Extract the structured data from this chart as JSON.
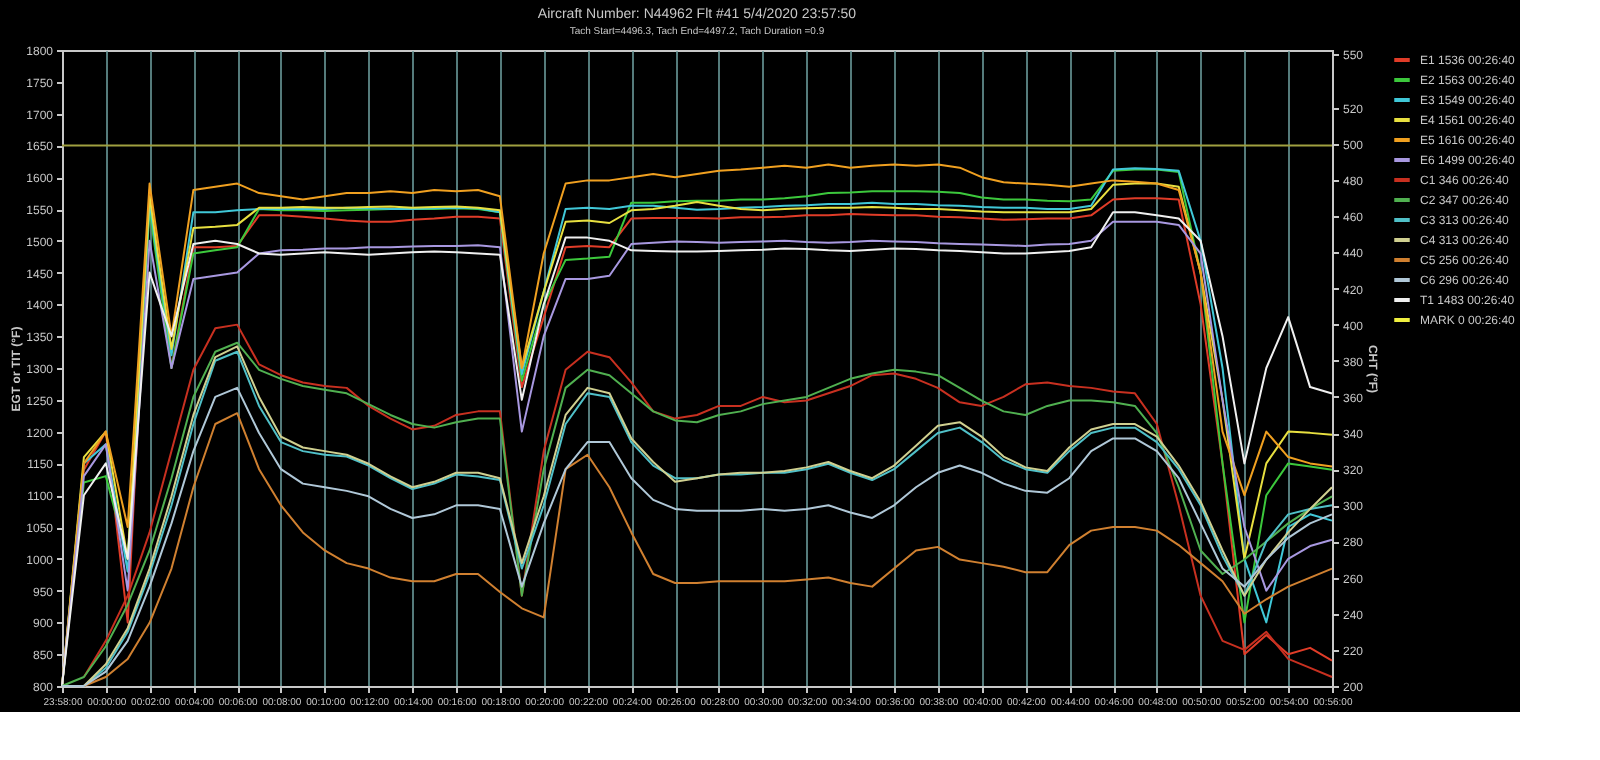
{
  "chart_data": {
    "type": "line",
    "title": "Aircraft Number: N44962 Flt #41 5/4/2020 23:57:50",
    "subtitle": "Tach Start=4496.3, Tach End=4497.2, Tach Duration =0.9",
    "ylabel": "EGT or TIT (°F)",
    "y2label": "CHT (°F)",
    "x": [
      "2020-05-04T23:58",
      "2020-05-04T23:59",
      "2020-05-05T00:00",
      "2020-05-05T00:01",
      "2020-05-05T00:02",
      "2020-05-05T00:03",
      "2020-05-05T00:04",
      "2020-05-05T00:05",
      "2020-05-05T00:06",
      "2020-05-05T00:07",
      "2020-05-05T00:08",
      "2020-05-05T00:09",
      "2020-05-05T00:10",
      "2020-05-05T00:11",
      "2020-05-05T00:12",
      "2020-05-05T00:13",
      "2020-05-05T00:14",
      "2020-05-05T00:15",
      "2020-05-05T00:16",
      "2020-05-05T00:17",
      "2020-05-05T00:18",
      "2020-05-05T00:19",
      "2020-05-05T00:20",
      "2020-05-05T00:21",
      "2020-05-05T00:22",
      "2020-05-05T00:23",
      "2020-05-05T00:24",
      "2020-05-05T00:25",
      "2020-05-05T00:26",
      "2020-05-05T00:27",
      "2020-05-05T00:28",
      "2020-05-05T00:29",
      "2020-05-05T00:30",
      "2020-05-05T00:31",
      "2020-05-05T00:32",
      "2020-05-05T00:33",
      "2020-05-05T00:34",
      "2020-05-05T00:35",
      "2020-05-05T00:36",
      "2020-05-05T00:37",
      "2020-05-05T00:38",
      "2020-05-05T00:39",
      "2020-05-05T00:40",
      "2020-05-05T00:41",
      "2020-05-05T00:42",
      "2020-05-05T00:43",
      "2020-05-05T00:44",
      "2020-05-05T00:45",
      "2020-05-05T00:46",
      "2020-05-05T00:47",
      "2020-05-05T00:48",
      "2020-05-05T00:49",
      "2020-05-05T00:50",
      "2020-05-05T00:51",
      "2020-05-05T00:52",
      "2020-05-05T00:53",
      "2020-05-05T00:54",
      "2020-05-05T00:55",
      "2020-05-05T00:56"
    ],
    "series": [
      {
        "name": "E1 1536 00:26:40",
        "color": "#e03c28",
        "values": [
          800,
          1140,
          1200,
          900,
          1580,
          1300,
          1490,
          1490,
          1492,
          1540,
          1540,
          1538,
          1535,
          1532,
          1530,
          1530,
          1533,
          1535,
          1538,
          1538,
          1535,
          1270,
          1380,
          1490,
          1492,
          1490,
          1535,
          1536,
          1536,
          1536,
          1535,
          1537,
          1537,
          1538,
          1540,
          1540,
          1542,
          1541,
          1540,
          1540,
          1538,
          1537,
          1535,
          1533,
          1534,
          1535,
          1535,
          1540,
          1565,
          1567,
          1567,
          1565,
          1400,
          1150,
          850,
          880,
          850,
          860,
          840
        ]
      },
      {
        "name": "E2 1563 00:26:40",
        "color": "#3cc83c",
        "values": [
          800,
          1120,
          1130,
          1000,
          1550,
          1300,
          1480,
          1485,
          1490,
          1550,
          1548,
          1548,
          1547,
          1548,
          1549,
          1550,
          1550,
          1550,
          1551,
          1550,
          1545,
          1280,
          1400,
          1470,
          1472,
          1475,
          1560,
          1560,
          1562,
          1563,
          1563,
          1565,
          1565,
          1567,
          1570,
          1575,
          1576,
          1578,
          1578,
          1578,
          1577,
          1575,
          1568,
          1565,
          1565,
          1563,
          1562,
          1565,
          1610,
          1612,
          1612,
          1608,
          1450,
          1150,
          900,
          1100,
          1150,
          1145,
          1140
        ]
      },
      {
        "name": "E3 1549 00:26:40",
        "color": "#40c8d8",
        "values": [
          800,
          1150,
          1180,
          980,
          1560,
          1320,
          1545,
          1545,
          1548,
          1550,
          1550,
          1550,
          1550,
          1552,
          1551,
          1550,
          1550,
          1551,
          1552,
          1551,
          1545,
          1290,
          1420,
          1550,
          1552,
          1550,
          1555,
          1555,
          1552,
          1549,
          1550,
          1552,
          1553,
          1555,
          1556,
          1558,
          1558,
          1560,
          1558,
          1558,
          1556,
          1555,
          1553,
          1552,
          1552,
          1550,
          1550,
          1555,
          1612,
          1614,
          1613,
          1610,
          1500,
          1300,
          1000,
          900,
          1050,
          1070,
          1060
        ]
      },
      {
        "name": "E4 1561 00:26:40",
        "color": "#e8e040",
        "values": [
          800,
          1160,
          1200,
          1000,
          1570,
          1330,
          1520,
          1522,
          1525,
          1552,
          1552,
          1553,
          1552,
          1552,
          1553,
          1554,
          1552,
          1553,
          1554,
          1552,
          1548,
          1300,
          1420,
          1530,
          1532,
          1528,
          1548,
          1550,
          1555,
          1561,
          1555,
          1550,
          1548,
          1550,
          1551,
          1552,
          1552,
          1553,
          1552,
          1550,
          1550,
          1548,
          1546,
          1545,
          1545,
          1545,
          1545,
          1550,
          1588,
          1590,
          1590,
          1585,
          1450,
          1250,
          1000,
          1150,
          1200,
          1198,
          1195
        ]
      },
      {
        "name": "E5 1616 00:26:40",
        "color": "#f0a020",
        "values": [
          800,
          1150,
          1200,
          1050,
          1590,
          1350,
          1580,
          1585,
          1590,
          1575,
          1570,
          1565,
          1570,
          1575,
          1575,
          1578,
          1575,
          1580,
          1578,
          1580,
          1570,
          1300,
          1480,
          1590,
          1595,
          1595,
          1600,
          1605,
          1600,
          1605,
          1610,
          1612,
          1615,
          1618,
          1615,
          1620,
          1615,
          1618,
          1620,
          1618,
          1620,
          1615,
          1600,
          1592,
          1590,
          1588,
          1585,
          1590,
          1595,
          1593,
          1590,
          1580,
          1450,
          1200,
          1100,
          1200,
          1160,
          1150,
          1145
        ]
      },
      {
        "name": "E6 1499 00:26:40",
        "color": "#a898e0",
        "values": [
          800,
          1130,
          1180,
          950,
          1500,
          1300,
          1440,
          1445,
          1450,
          1480,
          1485,
          1486,
          1488,
          1488,
          1490,
          1490,
          1491,
          1492,
          1492,
          1493,
          1490,
          1200,
          1350,
          1440,
          1440,
          1445,
          1495,
          1497,
          1499,
          1498,
          1497,
          1498,
          1499,
          1500,
          1498,
          1497,
          1498,
          1500,
          1499,
          1498,
          1496,
          1495,
          1494,
          1493,
          1492,
          1494,
          1495,
          1500,
          1530,
          1530,
          1530,
          1525,
          1480,
          1250,
          1050,
          950,
          1000,
          1020,
          1030
        ]
      },
      {
        "name": "C1 346 00:26:40",
        "color": "#c83020",
        "axis": "y2",
        "values": [
          null,
          205,
          225,
          250,
          285,
          330,
          375,
          398,
          400,
          378,
          372,
          368,
          366,
          365,
          355,
          348,
          342,
          344,
          350,
          352,
          352,
          250,
          330,
          375,
          385,
          382,
          368,
          352,
          348,
          350,
          355,
          355,
          360,
          357,
          358,
          362,
          366,
          372,
          373,
          370,
          365,
          357,
          355,
          360,
          367,
          368,
          366,
          365,
          363,
          362,
          345,
          300,
          250,
          225,
          220,
          230,
          215,
          210,
          205
        ]
      },
      {
        "name": "C2 347 00:26:40",
        "color": "#50b050",
        "axis": "y2",
        "values": [
          200,
          205,
          222,
          245,
          275,
          315,
          360,
          385,
          390,
          375,
          370,
          366,
          364,
          362,
          356,
          350,
          345,
          343,
          346,
          348,
          348,
          250,
          320,
          365,
          375,
          372,
          362,
          352,
          347,
          346,
          350,
          352,
          356,
          358,
          360,
          365,
          370,
          373,
          375,
          374,
          372,
          365,
          358,
          352,
          350,
          355,
          358,
          358,
          357,
          355,
          340,
          310,
          275,
          262,
          270,
          280,
          290,
          298,
          305
        ]
      },
      {
        "name": "C3 313 00:26:40",
        "color": "#50c0c8",
        "axis": "y2",
        "values": [
          200,
          200,
          210,
          230,
          262,
          300,
          345,
          380,
          385,
          355,
          335,
          330,
          328,
          327,
          322,
          315,
          309,
          312,
          317,
          316,
          314,
          265,
          300,
          345,
          362,
          360,
          335,
          322,
          315,
          315,
          317,
          317,
          318,
          318,
          320,
          323,
          318,
          314,
          320,
          330,
          340,
          343,
          335,
          325,
          320,
          318,
          330,
          340,
          343,
          343,
          335,
          320,
          300,
          272,
          250,
          280,
          295,
          298,
          300
        ]
      },
      {
        "name": "C4 313 00:26:40",
        "color": "#d0d090",
        "axis": "y2",
        "values": [
          200,
          200,
          212,
          232,
          265,
          305,
          350,
          382,
          388,
          360,
          338,
          332,
          330,
          328,
          323,
          316,
          310,
          313,
          318,
          318,
          315,
          268,
          305,
          350,
          365,
          362,
          337,
          324,
          313,
          315,
          317,
          318,
          318,
          319,
          321,
          324,
          319,
          315,
          322,
          333,
          344,
          346,
          338,
          327,
          321,
          319,
          332,
          342,
          345,
          345,
          338,
          322,
          302,
          275,
          250,
          270,
          285,
          298,
          310
        ]
      },
      {
        "name": "C5 256 00:26:40",
        "color": "#d08030",
        "axis": "y2",
        "values": [
          200,
          200,
          205,
          215,
          235,
          265,
          310,
          345,
          351,
          320,
          300,
          285,
          275,
          268,
          265,
          260,
          258,
          258,
          262,
          262,
          252,
          243,
          238,
          320,
          328,
          310,
          285,
          262,
          257,
          257,
          258,
          258,
          258,
          258,
          259,
          260,
          257,
          255,
          265,
          275,
          277,
          270,
          268,
          266,
          263,
          263,
          278,
          286,
          288,
          288,
          286,
          278,
          268,
          258,
          240,
          248,
          255,
          260,
          265
        ]
      },
      {
        "name": "C6 296 00:26:40",
        "color": "#b0c8d8",
        "axis": "y2",
        "values": [
          200,
          200,
          208,
          225,
          255,
          290,
          330,
          360,
          365,
          340,
          320,
          312,
          310,
          308,
          305,
          298,
          293,
          295,
          300,
          300,
          298,
          255,
          290,
          320,
          335,
          335,
          315,
          303,
          298,
          297,
          297,
          297,
          298,
          297,
          298,
          300,
          296,
          293,
          300,
          310,
          318,
          322,
          318,
          312,
          308,
          307,
          315,
          330,
          337,
          337,
          330,
          315,
          290,
          265,
          255,
          270,
          282,
          290,
          295
        ]
      },
      {
        "name": "T1 1483 00:26:40",
        "color": "#f0f0f0",
        "values": [
          800,
          1100,
          1150,
          1000,
          1450,
          1350,
          1495,
          1500,
          1495,
          1480,
          1478,
          1480,
          1482,
          1480,
          1478,
          1480,
          1482,
          1483,
          1482,
          1480,
          1478,
          1250,
          1400,
          1505,
          1505,
          1500,
          1485,
          1484,
          1483,
          1483,
          1484,
          1485,
          1486,
          1488,
          1487,
          1485,
          1484,
          1486,
          1488,
          1487,
          1485,
          1484,
          1482,
          1480,
          1480,
          1482,
          1484,
          1490,
          1545,
          1545,
          1540,
          1535,
          1500,
          1350,
          1150,
          1300,
          1380,
          1270,
          1260
        ]
      },
      {
        "name": "MARK 0 00:26:40",
        "color": "#f0f040",
        "values": [
          null,
          null,
          null,
          null,
          null,
          null,
          null,
          null,
          null,
          null,
          null,
          null,
          null,
          null,
          null,
          null,
          null,
          null,
          null,
          null,
          null,
          null,
          null,
          null,
          null,
          null,
          null,
          null,
          null,
          null,
          null,
          null,
          null,
          null,
          null,
          null,
          null,
          null,
          null,
          null,
          null,
          null,
          null,
          null,
          null,
          null,
          null,
          null,
          null,
          null,
          null,
          null,
          null,
          null,
          null,
          null,
          null,
          null,
          null
        ]
      }
    ],
    "xlim": [
      "2020-05-04T23:58",
      "2020-05-05T00:56"
    ],
    "xticks": [
      {
        "value": "2020-05-04T23:58",
        "label": "23:58:00"
      },
      {
        "value": "2020-05-05T00:00",
        "label": "00:00:00"
      },
      {
        "value": "2020-05-05T00:02",
        "label": "00:02:00"
      },
      {
        "value": "2020-05-05T00:04",
        "label": "00:04:00"
      },
      {
        "value": "2020-05-05T00:06",
        "label": "00:06:00"
      },
      {
        "value": "2020-05-05T00:08",
        "label": "00:08:00"
      },
      {
        "value": "2020-05-05T00:10",
        "label": "00:10:00"
      },
      {
        "value": "2020-05-05T00:12",
        "label": "00:12:00"
      },
      {
        "value": "2020-05-05T00:14",
        "label": "00:14:00"
      },
      {
        "value": "2020-05-05T00:16",
        "label": "00:16:00"
      },
      {
        "value": "2020-05-05T00:18",
        "label": "00:18:00"
      },
      {
        "value": "2020-05-05T00:20",
        "label": "00:20:00"
      },
      {
        "value": "2020-05-05T00:22",
        "label": "00:22:00"
      },
      {
        "value": "2020-05-05T00:24",
        "label": "00:24:00"
      },
      {
        "value": "2020-05-05T00:26",
        "label": "00:26:00"
      },
      {
        "value": "2020-05-05T00:28",
        "label": "00:28:00"
      },
      {
        "value": "2020-05-05T00:30",
        "label": "00:30:00"
      },
      {
        "value": "2020-05-05T00:32",
        "label": "00:32:00"
      },
      {
        "value": "2020-05-05T00:34",
        "label": "00:34:00"
      },
      {
        "value": "2020-05-05T00:36",
        "label": "00:36:00"
      },
      {
        "value": "2020-05-05T00:38",
        "label": "00:38:00"
      },
      {
        "value": "2020-05-05T00:40",
        "label": "00:40:00"
      },
      {
        "value": "2020-05-05T00:42",
        "label": "00:42:00"
      },
      {
        "value": "2020-05-05T00:44",
        "label": "00:44:00"
      },
      {
        "value": "2020-05-05T00:46",
        "label": "00:46:00"
      },
      {
        "value": "2020-05-05T00:48",
        "label": "00:48:00"
      },
      {
        "value": "2020-05-05T00:50",
        "label": "00:50:00"
      },
      {
        "value": "2020-05-05T00:52",
        "label": "00:52:00"
      },
      {
        "value": "2020-05-05T00:54",
        "label": "00:54:00"
      },
      {
        "value": "2020-05-05T00:56",
        "label": "00:56:00"
      }
    ],
    "ylim": [
      800,
      1800
    ],
    "yticks": [
      800,
      850,
      900,
      950,
      1000,
      1050,
      1100,
      1150,
      1200,
      1250,
      1300,
      1350,
      1400,
      1450,
      1500,
      1550,
      1600,
      1650,
      1700,
      1750,
      1800
    ],
    "y2lim": [
      200,
      552
    ],
    "y2ticks": [
      200,
      220,
      240,
      260,
      280,
      300,
      320,
      340,
      360,
      380,
      400,
      420,
      440,
      460,
      480,
      500,
      520,
      550
    ],
    "ref_lines": [
      {
        "axis": "y",
        "value": 1650,
        "color": "#a0a040"
      }
    ],
    "grid": "x",
    "legend": "right"
  }
}
